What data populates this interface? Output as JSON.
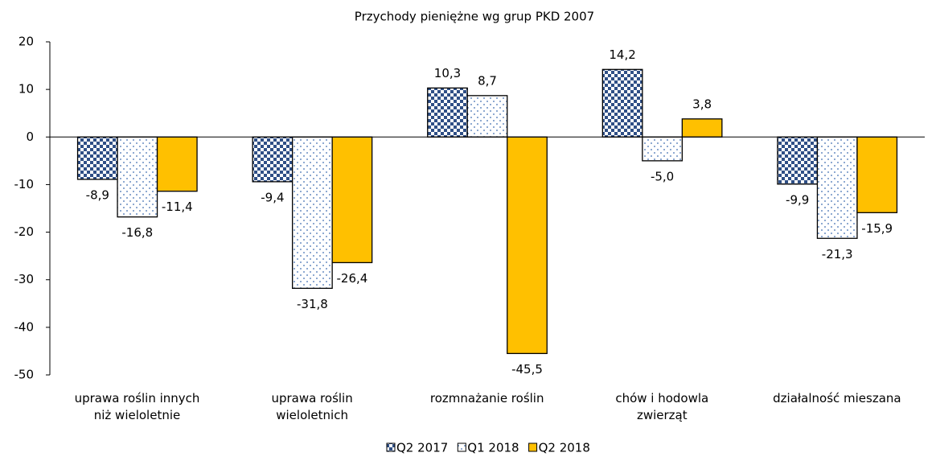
{
  "chart_data": {
    "type": "bar",
    "title": "Przychody pieniężne wg grup PKD 2007",
    "categories": [
      "uprawa roślin innych\nniż wieloletnie",
      "uprawa roślin\nwieloletnich",
      "rozmnażanie roślin",
      "chów i hodowla\nzwierząt",
      "działalność mieszana"
    ],
    "series": [
      {
        "name": "Q2 2017",
        "color": "#2f4f86",
        "values": [
          -8.9,
          -9.4,
          10.3,
          14.2,
          -9.9
        ],
        "value_labels": [
          "-8,9",
          "-9,4",
          "10,3",
          "14,2",
          "-9,9"
        ]
      },
      {
        "name": "Q1 2018",
        "color": "#3d6cb0",
        "values": [
          -16.8,
          -31.8,
          8.7,
          -5.0,
          -21.3
        ],
        "value_labels": [
          "-16,8",
          "-31,8",
          "8,7",
          "-5,0",
          "-21,3"
        ]
      },
      {
        "name": "Q2 2018",
        "color": "#ffc000",
        "values": [
          -11.4,
          -26.4,
          -45.5,
          3.8,
          -15.9
        ],
        "value_labels": [
          "-11,4",
          "-26,4",
          "-45,5",
          "3,8",
          "-15,9"
        ]
      }
    ],
    "ylim": [
      -50,
      20
    ],
    "yticks": [
      -50,
      -40,
      -30,
      -20,
      -10,
      0,
      10,
      20
    ],
    "legend": "bottom"
  }
}
